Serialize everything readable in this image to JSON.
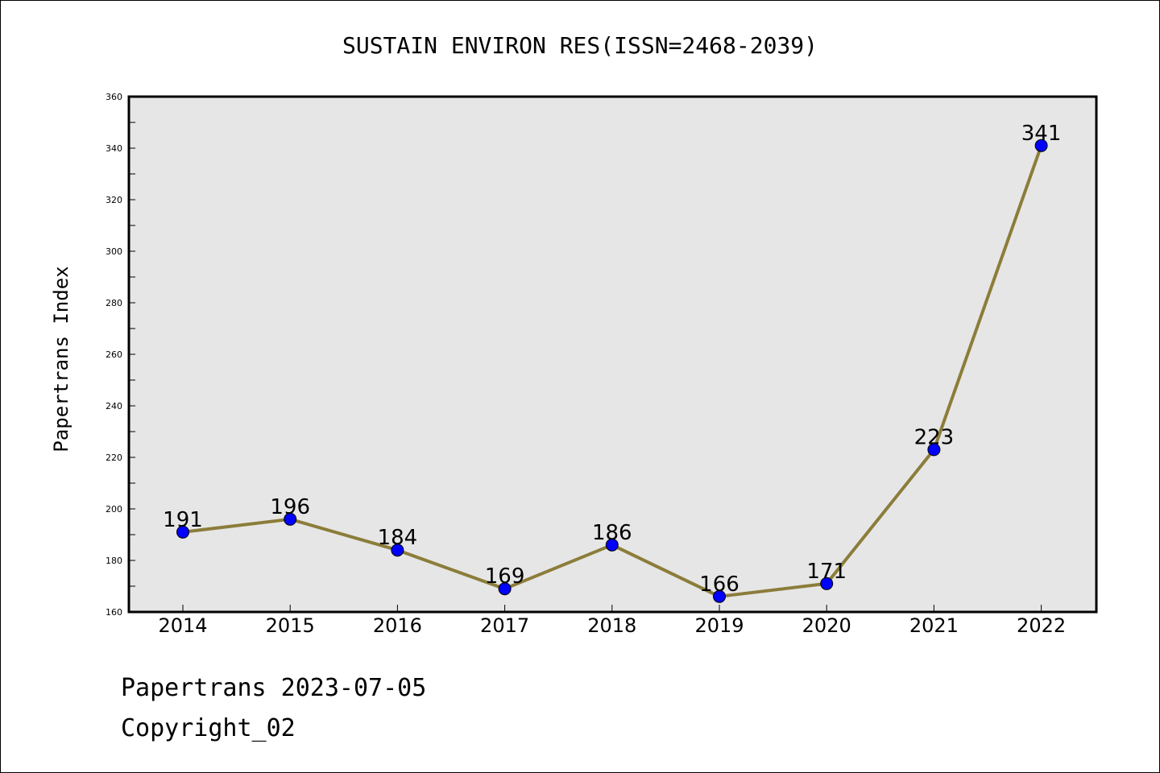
{
  "chart_data": {
    "type": "line",
    "title": "SUSTAIN ENVIRON RES(ISSN=2468-2039)",
    "xlabel": "",
    "ylabel": "Papertrans Index",
    "categories": [
      "2014",
      "2015",
      "2016",
      "2017",
      "2018",
      "2019",
      "2020",
      "2021",
      "2022"
    ],
    "series": [
      {
        "values": [
          191,
          196,
          184,
          169,
          186,
          166,
          171,
          223,
          341
        ]
      }
    ],
    "ylim": [
      160,
      360
    ],
    "yticks": [
      160,
      180,
      200,
      220,
      240,
      260,
      280,
      300,
      320,
      340,
      360
    ],
    "grid": false,
    "colors": {
      "line": "#8b7d3a",
      "marker": "#0000ff",
      "plot_bg": "#e6e6e6"
    }
  },
  "footer": {
    "line1": "Papertrans 2023-07-05",
    "line2": "Copyright_02"
  }
}
